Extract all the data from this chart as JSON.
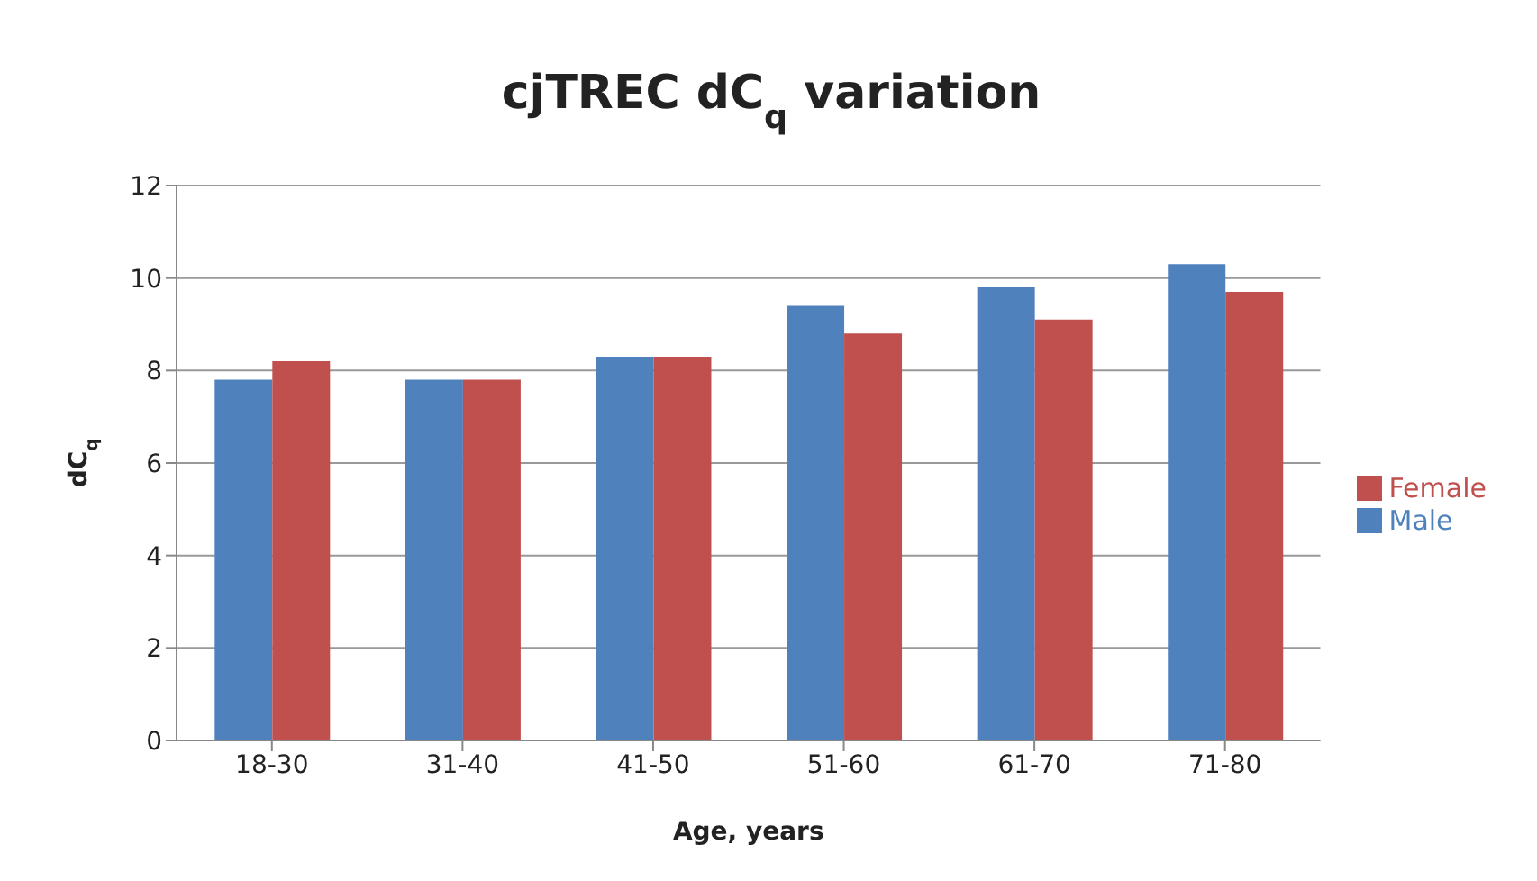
{
  "chart_data": {
    "type": "bar",
    "title": "cjTREC dC$_{q}$ variation",
    "xlabel": "Age, years",
    "ylabel": "dC$_{q}$",
    "categories": [
      "18-30",
      "31-40",
      "41-50",
      "51-60",
      "61-70",
      "71-80"
    ],
    "series": [
      {
        "name": "Male",
        "color": "#4f81bd",
        "values": [
          7.8,
          7.8,
          8.3,
          9.4,
          9.8,
          10.3
        ]
      },
      {
        "name": "Female",
        "color": "#c0504d",
        "values": [
          8.2,
          7.8,
          8.3,
          8.8,
          9.1,
          9.7
        ]
      }
    ],
    "ylim": [
      0,
      12
    ],
    "yticks": [
      0,
      2,
      4,
      6,
      8,
      10,
      12
    ],
    "grid": "y",
    "legend": "right"
  }
}
